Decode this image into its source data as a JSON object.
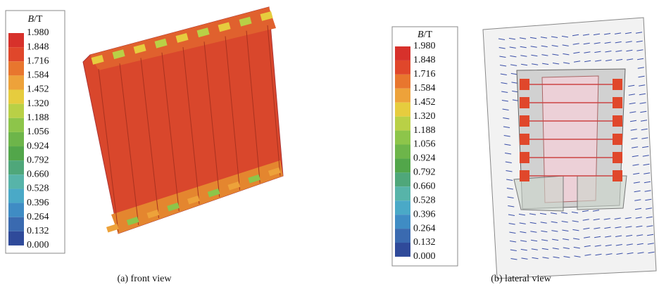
{
  "legend_colors": [
    "#d7312b",
    "#e0472b",
    "#e8762e",
    "#eda23a",
    "#e6cc3e",
    "#b9d046",
    "#8dc54a",
    "#6db54a",
    "#52a64a",
    "#4fa77a",
    "#57b4a9",
    "#4aa9c7",
    "#3f8cc4",
    "#3a6ab0",
    "#2f4a9a"
  ],
  "panels": [
    {
      "legend": {
        "title_symbol": "B",
        "title_unit": "/T",
        "labels": [
          "1.980",
          "1.848",
          "1.716",
          "1.584",
          "1.452",
          "1.320",
          "1.188",
          "1.056",
          "0.924",
          "0.792",
          "0.660",
          "0.528",
          "0.396",
          "0.264",
          "0.132",
          "0.000"
        ]
      },
      "caption": "(a) front view"
    },
    {
      "legend": {
        "title_symbol": "B",
        "title_unit": "/T",
        "labels": [
          "1.980",
          "1.848",
          "1.716",
          "1.584",
          "1.452",
          "1.320",
          "1.188",
          "1.056",
          "0.924",
          "0.792",
          "0.660",
          "0.528",
          "0.396",
          "0.264",
          "0.132",
          "0.000"
        ]
      },
      "caption": "(b) lateral view"
    }
  ]
}
